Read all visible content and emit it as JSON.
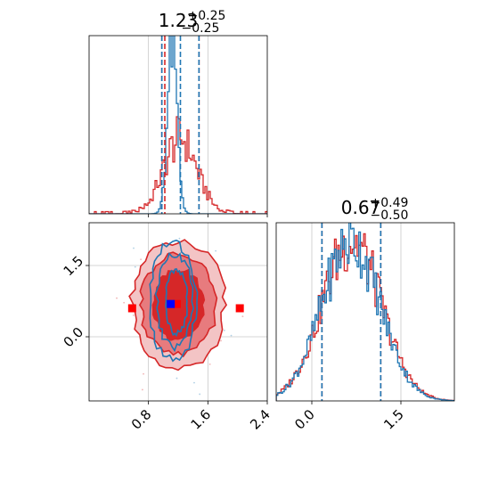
{
  "colors": {
    "red": "#d62728",
    "blue": "#1f77b4",
    "red_fill_light": "#f3c4c5",
    "red_fill_mid": "#e77b7e",
    "grid": "#c8c8c8",
    "marker_red": "#ff0000",
    "marker_blue": "#0000ff"
  },
  "chart_data": [
    {
      "type": "histogram",
      "panel": "top-left",
      "title": {
        "value": "1.23",
        "plus": "+0.25",
        "minus": "−0.25"
      },
      "xlim": [
        0.0,
        2.4
      ],
      "ylim": [
        0,
        1
      ],
      "grid": true,
      "series": [
        {
          "color": "red",
          "quantile_lines": [
            0.98,
            1.02,
            1.48
          ]
        },
        {
          "color": "blue",
          "quantile_lines": [
            0.98,
            1.23,
            1.48
          ]
        }
      ]
    },
    {
      "type": "histogram",
      "panel": "bottom-right",
      "title": {
        "value": "0.67",
        "plus": "+0.49",
        "minus": "−0.50"
      },
      "xlim": [
        -0.6,
        2.4
      ],
      "xticks": [
        "0.0",
        "1.5"
      ],
      "xtick_values": [
        0.0,
        1.5
      ],
      "grid": true,
      "series": [
        {
          "color": "red",
          "quantile_lines": [
            0.17,
            1.16
          ]
        },
        {
          "color": "blue",
          "quantile_lines": [
            0.17,
            1.16
          ]
        }
      ]
    },
    {
      "type": "scatter",
      "panel": "bottom-left",
      "xlim": [
        0.0,
        2.4
      ],
      "ylim": [
        -1.35,
        2.4
      ],
      "xticks": [
        "0.8",
        "1.6",
        "2.4"
      ],
      "xtick_values": [
        0.8,
        1.6,
        2.4
      ],
      "yticks": [
        "1.5",
        "0.0"
      ],
      "ytick_values": [
        1.5,
        0.0
      ],
      "grid": true,
      "markers": [
        {
          "color": "marker_red",
          "x": 0.58,
          "y": 0.6
        },
        {
          "color": "marker_red",
          "x": 2.03,
          "y": 0.6
        },
        {
          "color": "marker_red",
          "x": 1.18,
          "y": 0.69
        },
        {
          "color": "marker_blue",
          "x": 1.1,
          "y": 0.69
        }
      ]
    }
  ]
}
